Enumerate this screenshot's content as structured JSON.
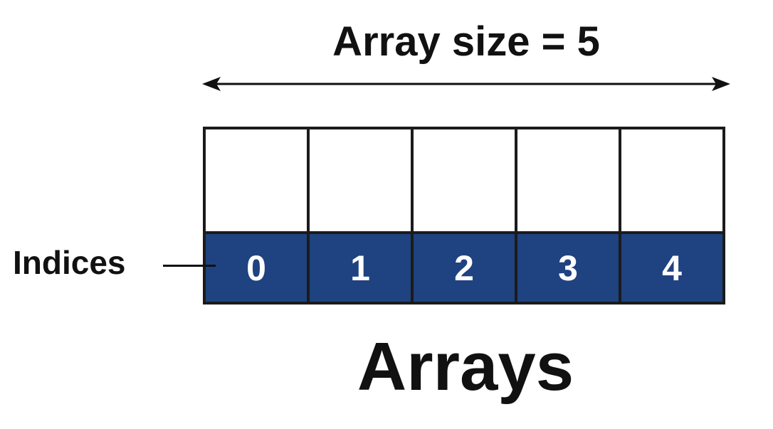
{
  "size_label": "Array size = 5",
  "indices_label": "Indices",
  "indices": [
    "0",
    "1",
    "2",
    "3",
    "4"
  ],
  "title": "Arrays",
  "colors": {
    "index_fill": "#1f4280",
    "border": "#1b1b1b",
    "text": "#111111"
  }
}
